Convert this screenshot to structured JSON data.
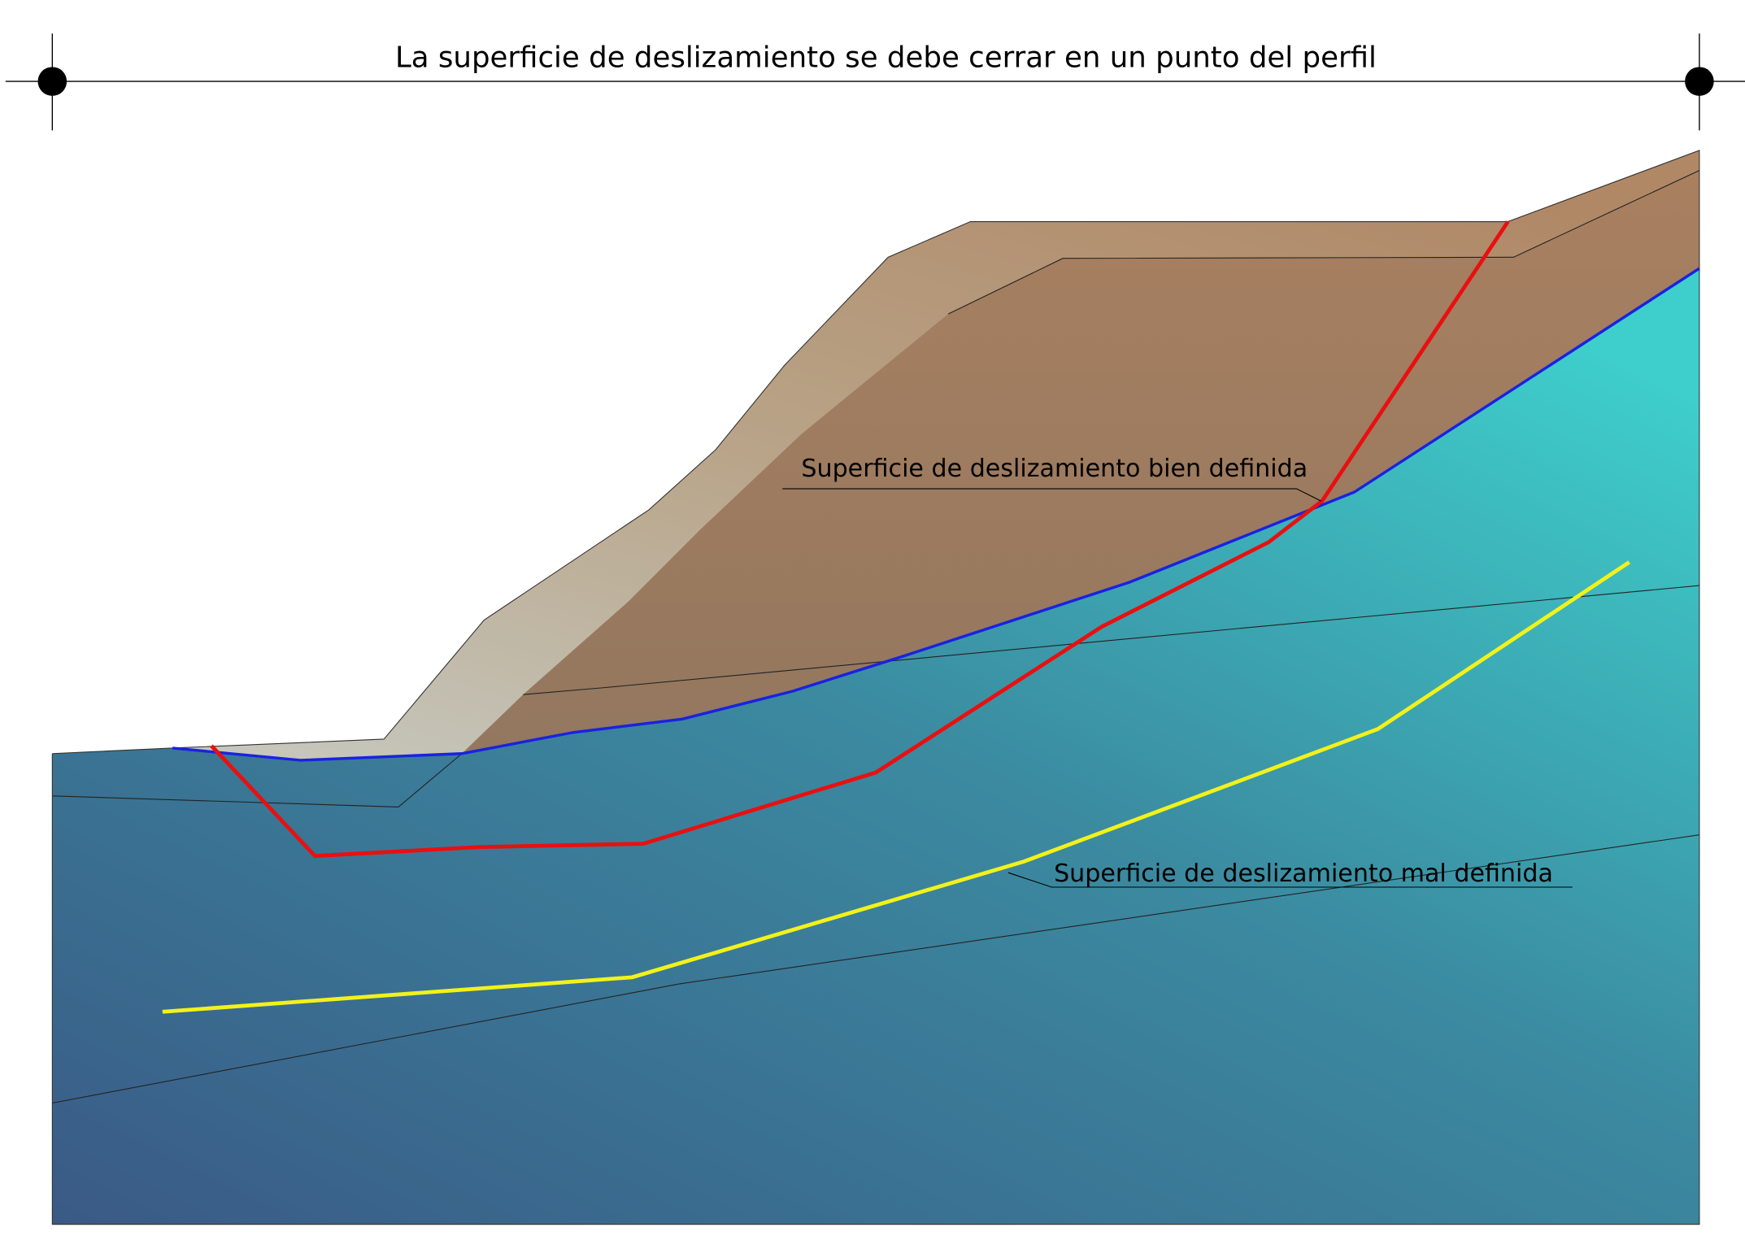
{
  "header": {
    "title": "La superficie de deslizamiento se debe cerrar en un punto del perfil"
  },
  "labels": {
    "well_defined": "Superficie de deslizamiento bien definida",
    "poorly_defined": "Superficie de deslizamiento mal definida"
  }
}
